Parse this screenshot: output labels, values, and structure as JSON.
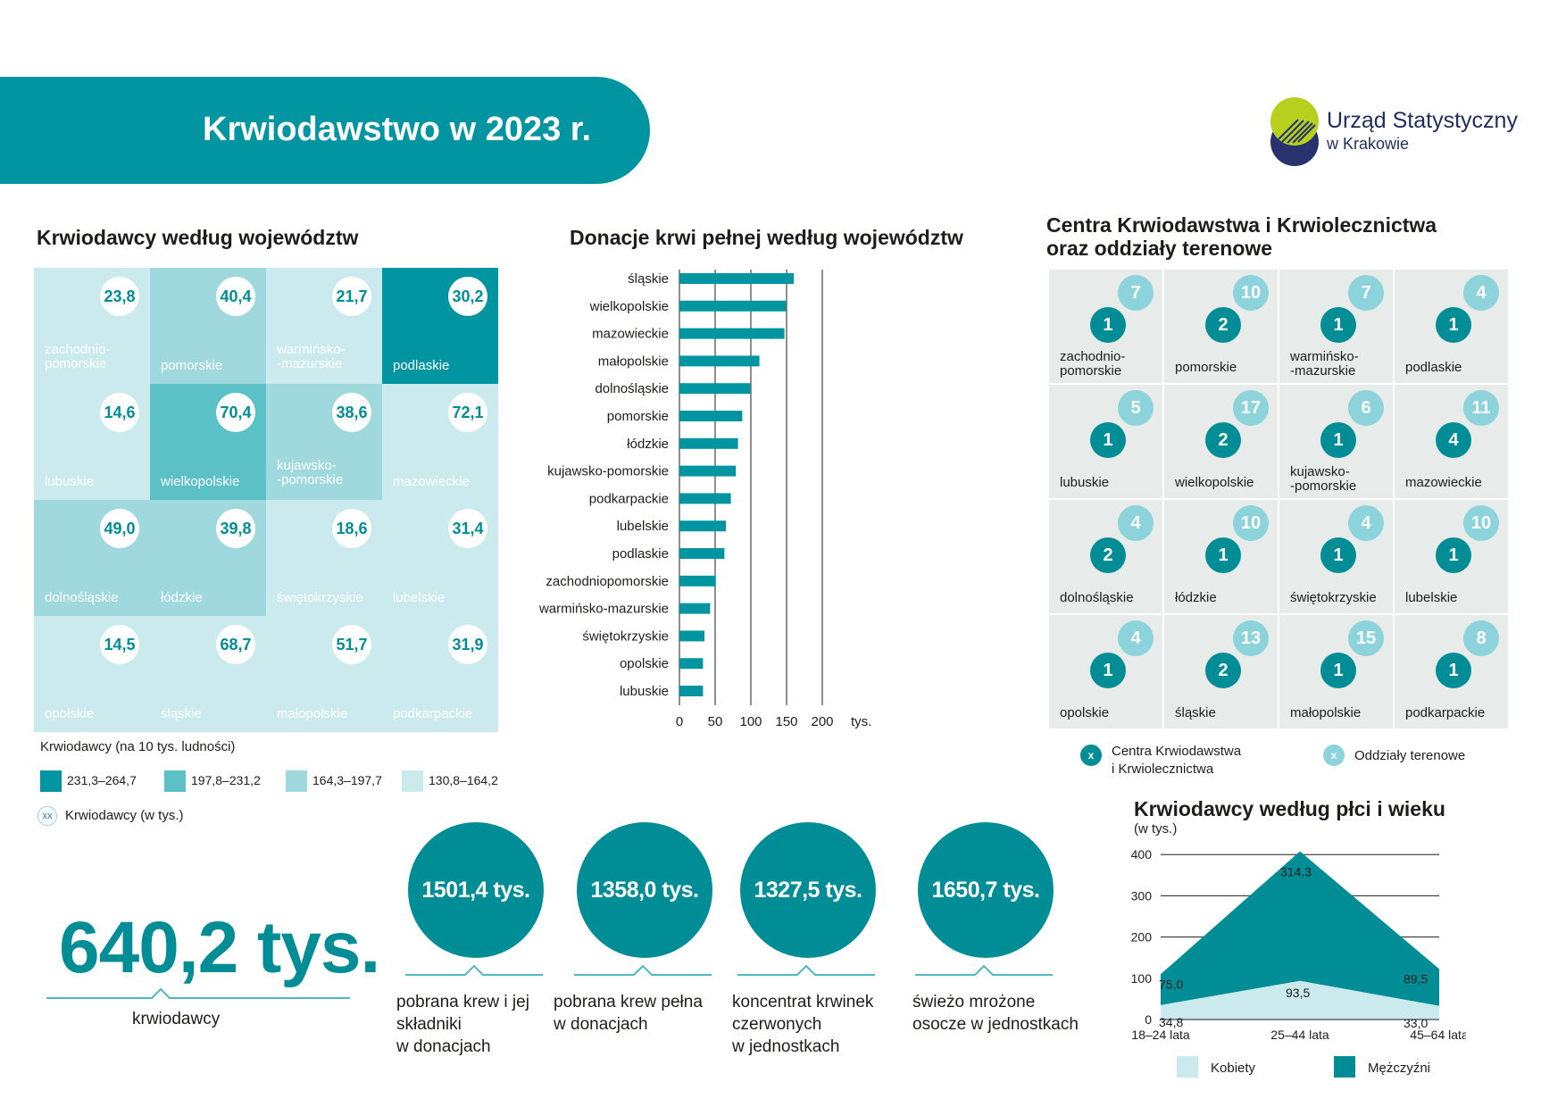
{
  "header": {
    "title": "Krwiodawstwo w 2023 r."
  },
  "logo": {
    "name": "Urząd Statystyczny",
    "sub": "w Krakowie"
  },
  "map_donors": {
    "title": "Krwiodawcy według województw",
    "tiles": [
      {
        "label": "zachodnio-\npomorskie",
        "value": "23,8",
        "cls": 4
      },
      {
        "label": "pomorskie",
        "value": "40,4",
        "cls": 3
      },
      {
        "label": "warmińsko-\n-mazurskie",
        "value": "21,7",
        "cls": 4
      },
      {
        "label": "podlaskie",
        "value": "30,2",
        "cls": 1
      },
      {
        "label": "lubuskie",
        "value": "14,6",
        "cls": 4
      },
      {
        "label": "wielkopolskie",
        "value": "70,4",
        "cls": 2
      },
      {
        "label": "kujawsko-\n-pomorskie",
        "value": "38,6",
        "cls": 3
      },
      {
        "label": "mazowieckie",
        "value": "72,1",
        "cls": 4
      },
      {
        "label": "dolnośląskie",
        "value": "49,0",
        "cls": 3
      },
      {
        "label": "łódzkie",
        "value": "39,8",
        "cls": 3
      },
      {
        "label": "świętokrzyskie",
        "value": "18,6",
        "cls": 4
      },
      {
        "label": "lubelskie",
        "value": "31,4",
        "cls": 4
      },
      {
        "label": "opolskie",
        "value": "14,5",
        "cls": 4
      },
      {
        "label": "śląskie",
        "value": "68,7",
        "cls": 4
      },
      {
        "label": "małopolskie",
        "value": "51,7",
        "cls": 4
      },
      {
        "label": "podkarpackie",
        "value": "31,9",
        "cls": 4
      }
    ],
    "legend_title": "Krwiodawcy (na 10 tys. ludności)",
    "legend": [
      {
        "label": "231,3–264,7",
        "color": "#0095a0"
      },
      {
        "label": "197,8–231,2",
        "color": "#5cc0c7"
      },
      {
        "label": "164,3–197,7",
        "color": "#9fd8dd"
      },
      {
        "label": "130,8–164,2",
        "color": "#cbeaed"
      }
    ],
    "badge_sample": "xx",
    "badge_legend": "Krwiodawcy (w tys.)"
  },
  "chart_data": [
    {
      "type": "bar",
      "orientation": "horizontal",
      "title": "Donacje krwi pełnej według województw",
      "categories": [
        "śląskie",
        "wielkopolskie",
        "mazowieckie",
        "małopolskie",
        "dolnośląskie",
        "pomorskie",
        "łódzkie",
        "kujawsko-pomorskie",
        "podkarpackie",
        "lubelskie",
        "podlaskie",
        "zachodniopomorskie",
        "warmińsko-mazurskie",
        "świętokrzyskie",
        "opolskie",
        "lubuskie"
      ],
      "values": [
        160,
        149,
        147,
        112,
        99,
        88,
        82,
        79,
        72,
        65,
        63,
        51,
        43,
        35,
        33,
        33
      ],
      "xlim": [
        0,
        200
      ],
      "xticks": [
        "0",
        "50",
        "100",
        "150",
        "200"
      ],
      "xticks_values": [
        0,
        50,
        100,
        150,
        200
      ],
      "unit": "tys."
    },
    {
      "type": "area",
      "stacked": true,
      "title": "Krwiodawcy według płci i wieku",
      "ylabel": "(w tys.)",
      "categories": [
        "18–24 lata",
        "25–44 lata",
        "45–64 lata"
      ],
      "series": [
        {
          "name": "Kobiety",
          "values": [
            34.8,
            93.5,
            33.0
          ],
          "labels": [
            "34,8",
            "93,5",
            "33,0"
          ],
          "color": "#cbeaed"
        },
        {
          "name": "Mężczyźni",
          "values": [
            75.0,
            314.3,
            89.5
          ],
          "labels": [
            "75,0",
            "314,3",
            "89,5"
          ],
          "color": "#008d96"
        }
      ],
      "ylim": [
        0,
        400
      ],
      "yticks": [
        "0",
        "100",
        "200",
        "300",
        "400"
      ],
      "yticks_values": [
        0,
        100,
        200,
        300,
        400
      ]
    }
  ],
  "centers": {
    "title_line1": "Centra Krwiodawstwa i Krwiolecznictwa",
    "title_line2": "oraz oddziały terenowe",
    "tiles": [
      {
        "label": "zachodnio-\npomorskie",
        "centers": "1",
        "branches": "7"
      },
      {
        "label": "pomorskie",
        "centers": "2",
        "branches": "10"
      },
      {
        "label": "warmińsko-\n-mazurskie",
        "centers": "1",
        "branches": "7"
      },
      {
        "label": "podlaskie",
        "centers": "1",
        "branches": "4"
      },
      {
        "label": "lubuskie",
        "centers": "1",
        "branches": "5"
      },
      {
        "label": "wielkopolskie",
        "centers": "2",
        "branches": "17"
      },
      {
        "label": "kujawsko-\n-pomorskie",
        "centers": "1",
        "branches": "6"
      },
      {
        "label": "mazowieckie",
        "centers": "4",
        "branches": "11"
      },
      {
        "label": "dolnośląskie",
        "centers": "2",
        "branches": "4"
      },
      {
        "label": "łódzkie",
        "centers": "1",
        "branches": "10"
      },
      {
        "label": "świętokrzyskie",
        "centers": "1",
        "branches": "4"
      },
      {
        "label": "lubelskie",
        "centers": "1",
        "branches": "10"
      },
      {
        "label": "opolskie",
        "centers": "1",
        "branches": "4"
      },
      {
        "label": "śląskie",
        "centers": "2",
        "branches": "13"
      },
      {
        "label": "małopolskie",
        "centers": "1",
        "branches": "15"
      },
      {
        "label": "podkarpackie",
        "centers": "1",
        "branches": "8"
      }
    ],
    "legend_center_symbol": "x",
    "legend_center_label": "Centra Krwiodawstwa\ni Krwiolecznictwa",
    "legend_branch_symbol": "x",
    "legend_branch_label": "Oddziały terenowe"
  },
  "stats": {
    "donors_value": "640,2 tys.",
    "donors_label": "krwiodawcy",
    "items": [
      {
        "value": "1501,4 tys.",
        "caption": "pobrana krew i jej\nskładniki\nw donacjach"
      },
      {
        "value": "1358,0 tys.",
        "caption": "pobrana krew pełna\nw donacjach"
      },
      {
        "value": "1327,5 tys.",
        "caption": "koncentrat krwinek\nczerwonych\nw jednostkach"
      },
      {
        "value": "1650,7 tys.",
        "caption": "świeżo mrożone\nosocze w jednostkach"
      }
    ]
  }
}
